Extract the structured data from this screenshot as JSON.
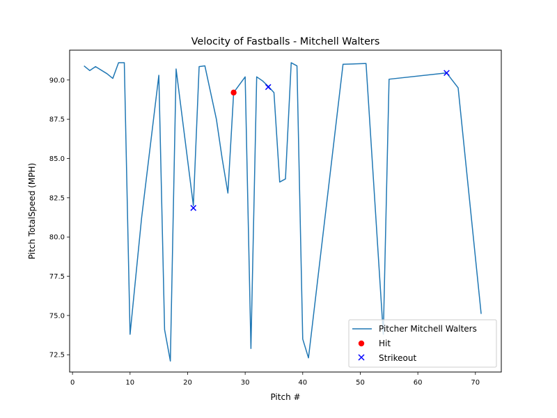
{
  "chart_data": {
    "type": "line",
    "title": "Velocity of Fastballs - Mitchell Walters",
    "xlabel": "Pitch #",
    "ylabel": "Pitch TotalSpeed (MPH)",
    "xlim": [
      -0.5,
      74.5
    ],
    "ylim": [
      71.4,
      91.9
    ],
    "xticks": [
      0,
      10,
      20,
      30,
      40,
      50,
      60,
      70
    ],
    "yticks": [
      72.5,
      75.0,
      77.5,
      80.0,
      82.5,
      85.0,
      87.5,
      90.0
    ],
    "xtick_labels": [
      "0",
      "10",
      "20",
      "30",
      "40",
      "50",
      "60",
      "70"
    ],
    "ytick_labels": [
      "72.5",
      "75.0",
      "77.5",
      "80.0",
      "82.5",
      "85.0",
      "87.5",
      "90.0"
    ],
    "grid": false,
    "legend_position": "lower right",
    "series": [
      {
        "name": "Pitcher Mitchell Walters",
        "kind": "line",
        "color": "#1f77b4",
        "x": [
          2,
          3,
          4,
          6,
          7,
          8,
          9,
          10,
          12,
          15,
          16,
          17,
          18,
          21,
          22,
          23,
          25,
          26,
          27,
          28,
          30,
          31,
          32,
          33,
          34,
          35,
          36,
          37,
          38,
          39,
          40,
          41,
          47,
          51,
          54,
          55,
          65,
          67,
          71
        ],
        "y": [
          90.9,
          90.6,
          90.85,
          90.4,
          90.1,
          91.1,
          91.1,
          73.8,
          81.2,
          90.3,
          74.1,
          72.1,
          90.7,
          82.0,
          90.85,
          90.9,
          87.5,
          85.0,
          82.8,
          89.2,
          90.2,
          72.9,
          90.2,
          89.95,
          89.6,
          89.2,
          83.5,
          83.7,
          91.1,
          90.9,
          73.5,
          72.3,
          91.0,
          91.05,
          73.8,
          90.05,
          90.45,
          89.5,
          75.1
        ]
      },
      {
        "name": "Hit",
        "kind": "scatter",
        "marker": "circle",
        "color": "#ff0000",
        "x": [
          28
        ],
        "y": [
          89.2
        ]
      },
      {
        "name": "Strikeout",
        "kind": "scatter",
        "marker": "x",
        "color": "#0000ff",
        "x": [
          21,
          34,
          65
        ],
        "y": [
          81.85,
          89.55,
          90.45
        ]
      }
    ]
  }
}
